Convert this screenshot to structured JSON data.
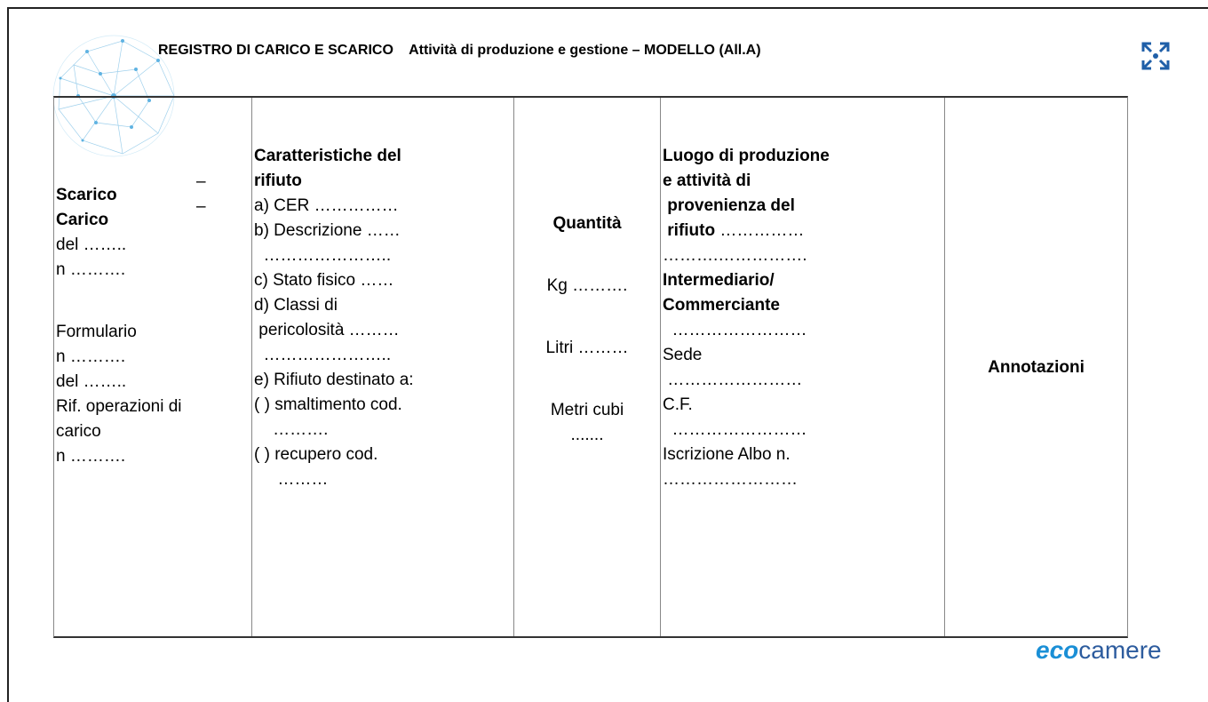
{
  "header": {
    "title": "REGISTRO DI CARICO E SCARICO",
    "subtitle": "Attività di produzione e gestione – MODELLO (All.A)"
  },
  "table": {
    "columns": [
      {
        "blocks": [
          [
            {
              "text": "Scarico",
              "bold": true
            },
            {
              "text": "Carico",
              "bold": true
            },
            {
              "text": "del …….."
            },
            {
              "text": "n ………."
            }
          ],
          [
            {
              "text": "Formulario"
            },
            {
              "text": "n ………."
            },
            {
              "text": "del …….."
            },
            {
              "text": "Rif. operazioni di"
            },
            {
              "text": "carico"
            },
            {
              "text": "n ………."
            }
          ]
        ],
        "dashes": [
          "–",
          "–"
        ]
      },
      {
        "blocks": [
          [
            {
              "text": "Caratteristiche del",
              "bold": true
            },
            {
              "text": "rifiuto",
              "bold": true
            },
            {
              "text": "a) CER ……………"
            },
            {
              "text": "b) Descrizione ……"
            },
            {
              "text": "  ………………….."
            },
            {
              "text": "c) Stato fisico ……"
            },
            {
              "text": "d) Classi di"
            },
            {
              "text": " pericolosità ………"
            },
            {
              "text": "  ………………….."
            },
            {
              "text": "e) Rifiuto destinato a:"
            },
            {
              "text": "( ) smaltimento cod."
            },
            {
              "text": "    ………."
            },
            {
              "text": "( ) recupero cod."
            },
            {
              "text": "     ………"
            }
          ]
        ]
      },
      {
        "blocks": [
          [
            {
              "text": "Quantità",
              "bold": true
            }
          ],
          [
            {
              "text": "Kg ………."
            }
          ],
          [
            {
              "text": "Litri ………"
            }
          ],
          [
            {
              "text": "Metri cubi"
            },
            {
              "text": "......."
            }
          ]
        ]
      },
      {
        "blocks": [
          [
            {
              "text": "Luogo di produzione",
              "bold": true
            },
            {
              "text": "e attività di",
              "bold": true
            },
            {
              "text": " provenienza del",
              "bold": true
            },
            {
              "text": " rifiuto",
              "bold": true,
              "after": " ……………"
            },
            {
              "text": "……….……………."
            },
            {
              "text": "Intermediario/",
              "bold": true
            },
            {
              "text": "Commerciante",
              "bold": true
            },
            {
              "text": "  ……………………"
            },
            {
              "text": "Sede"
            },
            {
              "text": " ……………………"
            },
            {
              "text": "C.F."
            },
            {
              "text": "  ……………………"
            },
            {
              "text": "Iscrizione Albo n."
            },
            {
              "text": "……………………"
            }
          ]
        ]
      },
      {
        "blocks": [
          [
            {
              "text": "Annotazioni",
              "bold": true
            }
          ]
        ]
      }
    ]
  },
  "logo": {
    "parts": [
      "eco",
      "camere"
    ]
  }
}
